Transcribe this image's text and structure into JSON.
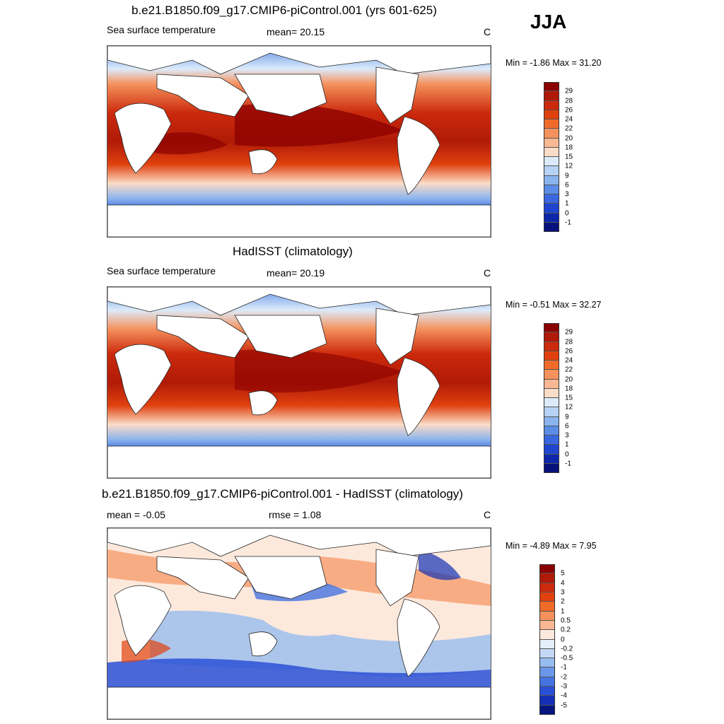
{
  "season": "JJA",
  "panels": [
    {
      "title": "b.e21.B1850.f09_g17.CMIP6-piControl.001 (yrs 601-625)",
      "left_label": "Sea surface temperature",
      "center_label": "mean=  20.15",
      "right_label": "C",
      "minmax": "Min =  -1.86 Max =  31.20",
      "colorbar": {
        "labels": [
          "29",
          "28",
          "26",
          "24",
          "22",
          "20",
          "18",
          "15",
          "12",
          "9",
          "6",
          "3",
          "1",
          "0",
          "-1"
        ],
        "colors": [
          "#8b0000",
          "#b01a08",
          "#cc2a0c",
          "#e0410e",
          "#f06a2a",
          "#f5915c",
          "#f8b893",
          "#fbdcc7",
          "#dcebfa",
          "#b7d2f5",
          "#8ab4ee",
          "#5b8de6",
          "#3a66df",
          "#1f45cf",
          "#0d27a8",
          "#06127a"
        ]
      }
    },
    {
      "title": "HadISST (climatology)",
      "left_label": "Sea surface temperature",
      "center_label": "mean=  20.19",
      "right_label": "C",
      "minmax": "Min =  -0.51 Max =  32.27",
      "colorbar": {
        "labels": [
          "29",
          "28",
          "26",
          "24",
          "22",
          "20",
          "18",
          "15",
          "12",
          "9",
          "6",
          "3",
          "1",
          "0",
          "-1"
        ],
        "colors": [
          "#8b0000",
          "#b01a08",
          "#cc2a0c",
          "#e0410e",
          "#f06a2a",
          "#f5915c",
          "#f8b893",
          "#fbdcc7",
          "#dcebfa",
          "#b7d2f5",
          "#8ab4ee",
          "#5b8de6",
          "#3a66df",
          "#1f45cf",
          "#0d27a8",
          "#06127a"
        ]
      }
    },
    {
      "title": "b.e21.B1850.f09_g17.CMIP6-piControl.001 - HadISST (climatology)",
      "left_label": "mean =  -0.05",
      "center_label": "rmse =   1.08",
      "right_label": "C",
      "minmax": "Min =  -4.89 Max =   7.95",
      "colorbar": {
        "labels": [
          "5",
          "4",
          "3",
          "2",
          "1",
          "0.5",
          "0.2",
          "0",
          "-0.2",
          "-0.5",
          "-1",
          "-2",
          "-3",
          "-4",
          "-5"
        ],
        "colors": [
          "#8b0000",
          "#b01a08",
          "#cc2a0c",
          "#e0410e",
          "#f06a2a",
          "#f5915c",
          "#f8b893",
          "#fde9dc",
          "#e3eefb",
          "#c2d8f6",
          "#97bcef",
          "#6a98e8",
          "#4573e1",
          "#2a50d6",
          "#1330b4",
          "#061680"
        ]
      }
    }
  ]
}
